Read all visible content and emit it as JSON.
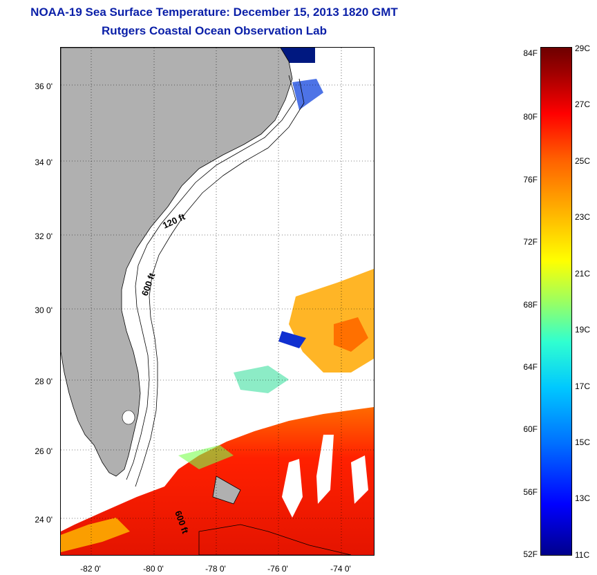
{
  "title": "NOAA-19 Sea Surface Temperature:  December 15, 2013 1820 GMT",
  "subtitle": "Rutgers Coastal Ocean Observation Lab",
  "map": {
    "lat_labels": [
      "36 0'",
      "34 0'",
      "32 0'",
      "30 0'",
      "28 0'",
      "26 0'",
      "24 0'"
    ],
    "lon_labels": [
      "-82 0'",
      "-80 0'",
      "-78 0'",
      "-76 0'",
      "-74 0'"
    ],
    "contour_labels": [
      "120 ft",
      "600 ft",
      "600 ft"
    ]
  },
  "colorbar": {
    "f_labels": [
      "84F",
      "80F",
      "76F",
      "72F",
      "68F",
      "64F",
      "60F",
      "56F",
      "52F"
    ],
    "c_labels": [
      "29C",
      "27C",
      "25C",
      "23C",
      "21C",
      "19C",
      "17C",
      "15C",
      "13C",
      "11C"
    ]
  },
  "colors": {
    "title": "#0a1fa8",
    "land": "#b0b0b0",
    "warm": "#ff1a00",
    "cloud": "#ffffff"
  }
}
